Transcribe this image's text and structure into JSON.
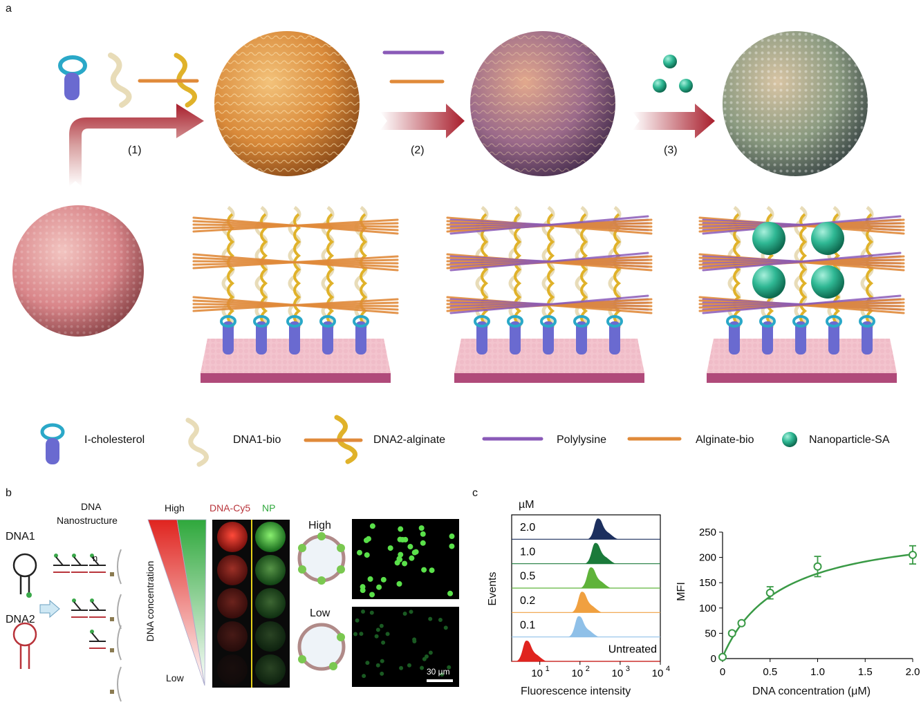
{
  "panels": {
    "a": "a",
    "b": "b",
    "c": "c"
  },
  "steps": [
    "(1)",
    "(2)",
    "(3)"
  ],
  "legend": [
    {
      "label": "I-cholesterol",
      "icon": "cholesterol-anchor-icon"
    },
    {
      "label": "DNA1-bio",
      "icon": "dna1-strand-icon"
    },
    {
      "label": "DNA2-alginate",
      "icon": "dna2-alginate-icon"
    },
    {
      "label": "Polylysine",
      "icon": "polylysine-rod-icon"
    },
    {
      "label": "Alginate-bio",
      "icon": "alginate-rod-icon"
    },
    {
      "label": "Nanoparticle-SA",
      "icon": "nanoparticle-icon"
    }
  ],
  "panel_b": {
    "dna1": "DNA1",
    "dna2": "DNA2",
    "nano_title_1": "DNA",
    "nano_title_2": "Nanostructure",
    "n_label": "n",
    "high": "High",
    "low": "Low",
    "axis_label": "DNA concentration",
    "channel_red": "DNA-Cy5",
    "channel_green": "NP",
    "cell_high": "High",
    "cell_low": "Low",
    "scale_bar": "30 µm"
  },
  "colors": {
    "arrow_red": "#a81e2c",
    "sphere_orange": "#d98a3a",
    "sphere_purple": "#9b6a8a",
    "sphere_final": "#8a9a80",
    "cell_pink": "#d9868a",
    "green": "#3a9a46",
    "red": "#e0241f",
    "navy": "#1c2f5e"
  },
  "chart_data": [
    {
      "type": "area",
      "unit_label": "µM",
      "ylabel": "Events",
      "xlabel": "Fluorescence intensity",
      "x_scale": "log",
      "x_ticks": [
        "10",
        "10",
        "10",
        "10"
      ],
      "x_tick_exps": [
        "1",
        "2",
        "3",
        "4"
      ],
      "rows": [
        {
          "label": "2.0",
          "peak": 300,
          "color": "#1c2f5e"
        },
        {
          "label": "1.0",
          "peak": 260,
          "color": "#1a7a3a"
        },
        {
          "label": "0.5",
          "peak": 200,
          "color": "#5fb33a"
        },
        {
          "label": "0.2",
          "peak": 120,
          "color": "#f0a040"
        },
        {
          "label": "0.1",
          "peak": 100,
          "color": "#8fc0e8"
        },
        {
          "label": "Untreated",
          "peak": 5,
          "color": "#e0241f"
        }
      ]
    },
    {
      "type": "scatter",
      "xlabel": "DNA concentration (μM)",
      "ylabel": "MFI",
      "xlim": [
        0,
        2.0
      ],
      "ylim": [
        0,
        250
      ],
      "x_ticks": [
        "0",
        "0.5",
        "1.0",
        "1.5",
        "2.0"
      ],
      "y_ticks": [
        "0",
        "50",
        "100",
        "150",
        "200",
        "250"
      ],
      "x": [
        0,
        0.1,
        0.2,
        0.5,
        1.0,
        2.0
      ],
      "y": [
        3,
        50,
        70,
        130,
        182,
        205
      ],
      "err": [
        3,
        4,
        4,
        12,
        20,
        18
      ],
      "fit": "saturation",
      "color": "#3a9a46"
    }
  ]
}
